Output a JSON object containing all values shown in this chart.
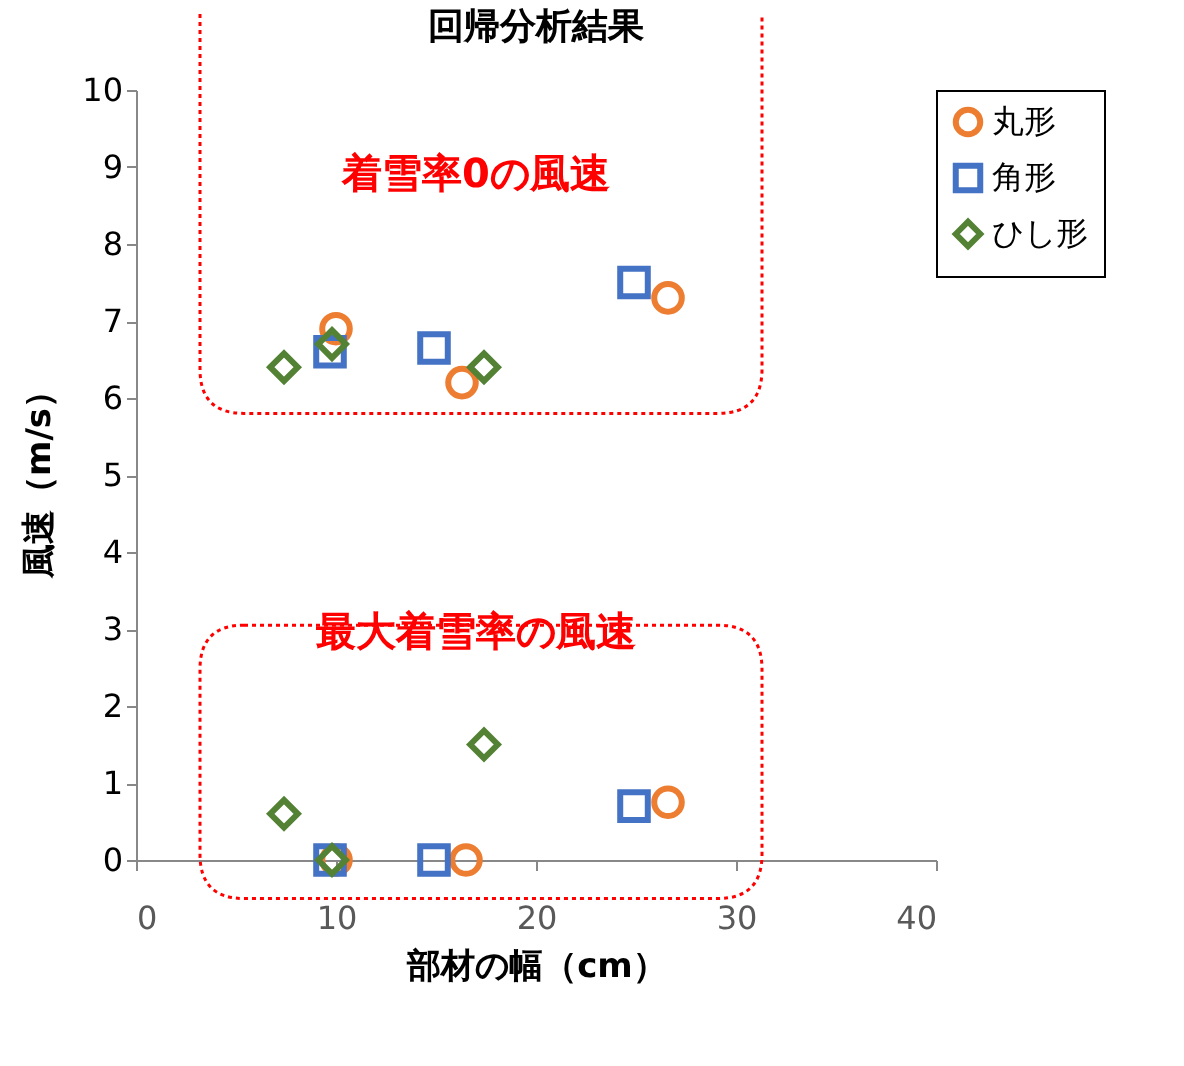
{
  "chart_data": {
    "type": "scatter",
    "title": "回帰分析結果",
    "xlabel": "部材の幅（cm）",
    "ylabel": "風速（m/s）",
    "annotations": [
      "着雪率0の風速",
      "最大着雪率の風速"
    ],
    "xlim": [
      0,
      40
    ],
    "xticks": [
      0,
      10,
      20,
      30,
      40
    ],
    "ylim": [
      0,
      10
    ],
    "yticks": [
      0,
      1,
      2,
      3,
      4,
      5,
      6,
      7,
      8,
      9,
      10
    ],
    "grid": false,
    "legend": "right",
    "series": [
      {
        "name": "丸形",
        "color": "#ed7d31",
        "marker": "circle",
        "x": [
          10,
          16.3,
          26.6,
          10,
          16.5,
          26.6
        ],
        "values": [
          6.9,
          6.2,
          7.3,
          0,
          0,
          0.75
        ]
      },
      {
        "name": "角形",
        "color": "#4472c4",
        "marker": "square",
        "x": [
          9.7,
          14.9,
          24.9,
          9.7,
          14.9,
          24.9
        ],
        "values": [
          6.6,
          6.65,
          7.5,
          0,
          0,
          0.7
        ]
      },
      {
        "name": "ひし形",
        "color": "#548235",
        "marker": "diamond",
        "x": [
          7.4,
          9.8,
          17.4,
          7.4,
          9.8,
          17.4
        ],
        "values": [
          6.4,
          6.7,
          6.4,
          0.6,
          0,
          1.5
        ]
      }
    ]
  }
}
